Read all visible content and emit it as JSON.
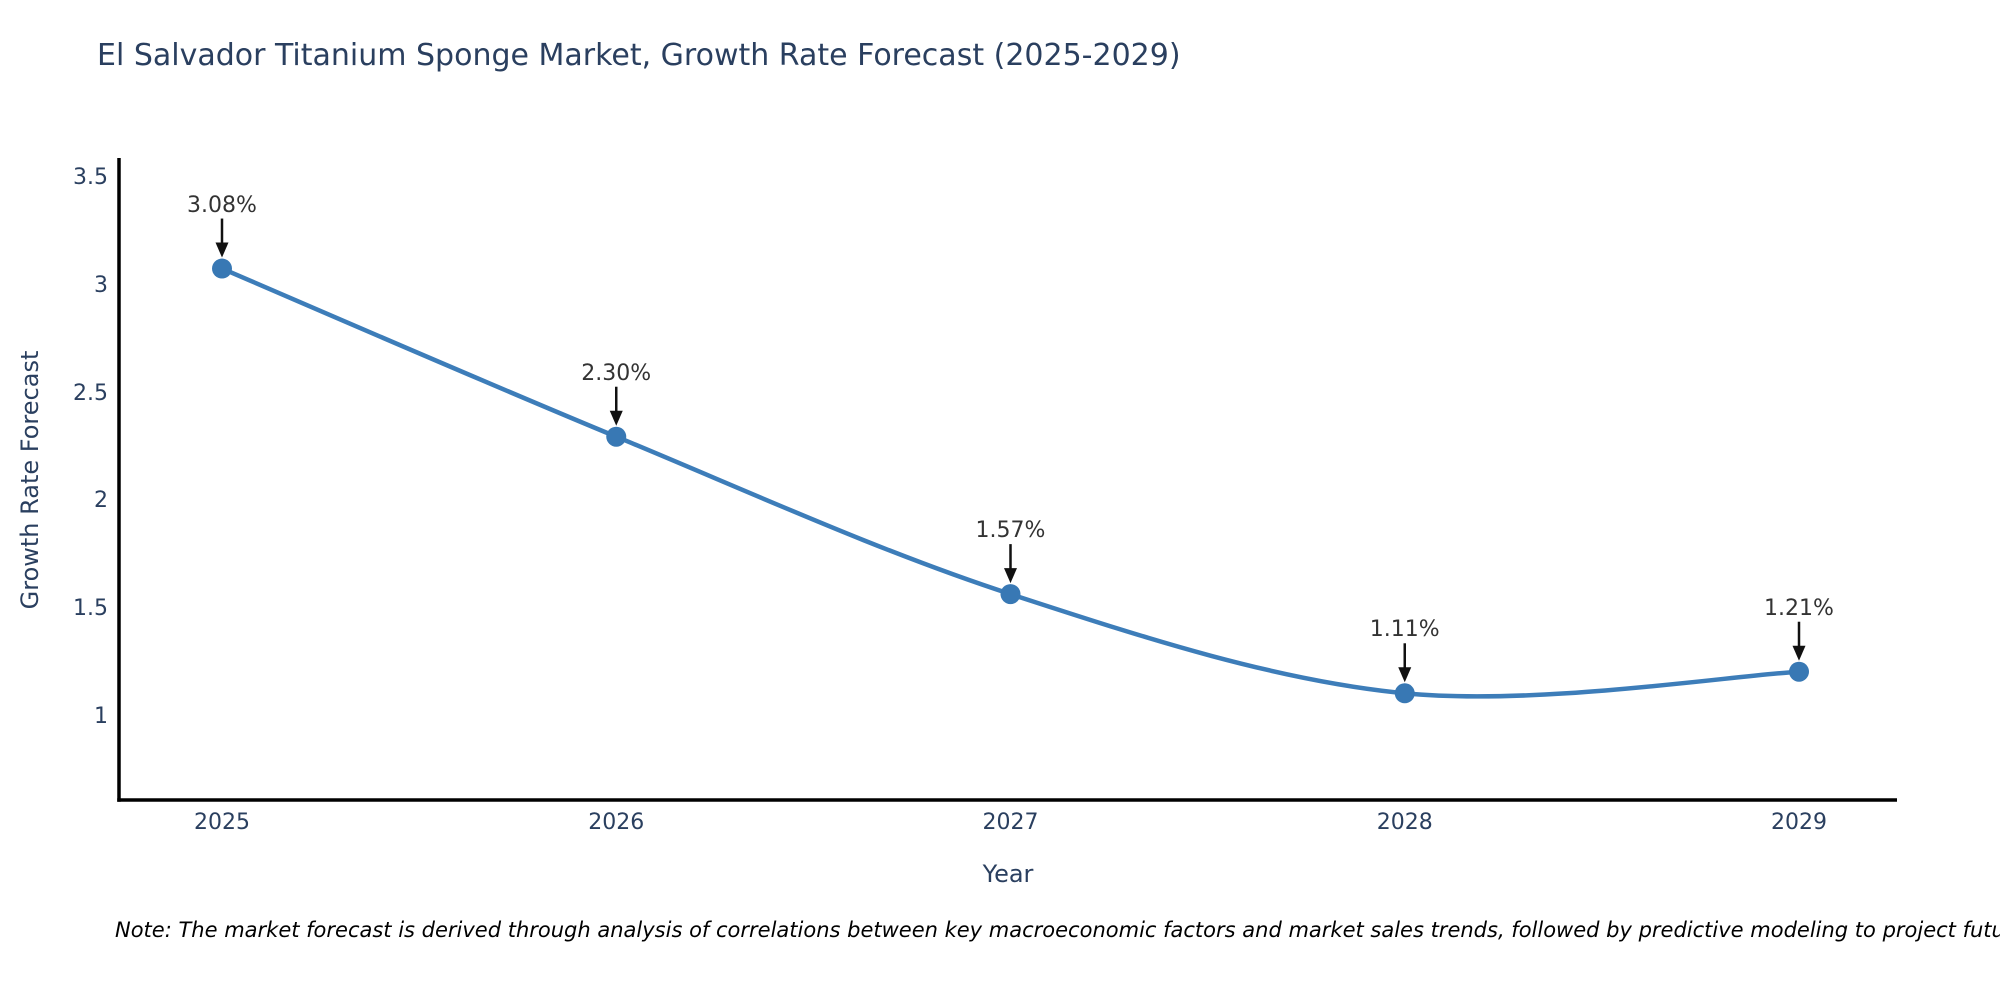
{
  "title": "El Salvador Titanium Sponge Market, Growth Rate Forecast (2025-2029)",
  "footnote": "Note: The market forecast is derived through analysis of correlations between key macroeconomic factors and market sales trends, followed by predictive modeling to project future sales",
  "chart_data": {
    "type": "line",
    "title": "El Salvador Titanium Sponge Market, Growth Rate Forecast (2025-2029)",
    "xlabel": "Year",
    "ylabel": "Growth Rate Forecast",
    "x": [
      2025,
      2026,
      2027,
      2028,
      2029
    ],
    "values": [
      3.08,
      2.3,
      1.57,
      1.11,
      1.21
    ],
    "point_labels": [
      "3.08%",
      "2.30%",
      "1.57%",
      "1.11%",
      "1.21%"
    ],
    "xticks": [
      "2025",
      "2026",
      "2027",
      "2028",
      "2029"
    ],
    "yticks": [
      "1",
      "1.5",
      "2",
      "2.5",
      "3",
      "3.5"
    ],
    "ytick_values": [
      1,
      1.5,
      2,
      2.5,
      3,
      3.5
    ],
    "ylim": [
      0.61,
      3.59
    ],
    "grid": false,
    "legend": "none",
    "smoothing": "spline",
    "line_color": "#3d7db9",
    "marker_color": "#3878b4",
    "arrow_color": "#111111",
    "axis_color": "#000000",
    "title_color": "#2a3f5f",
    "tick_color": "#2a3f5f",
    "annotation_color": "#333333"
  }
}
